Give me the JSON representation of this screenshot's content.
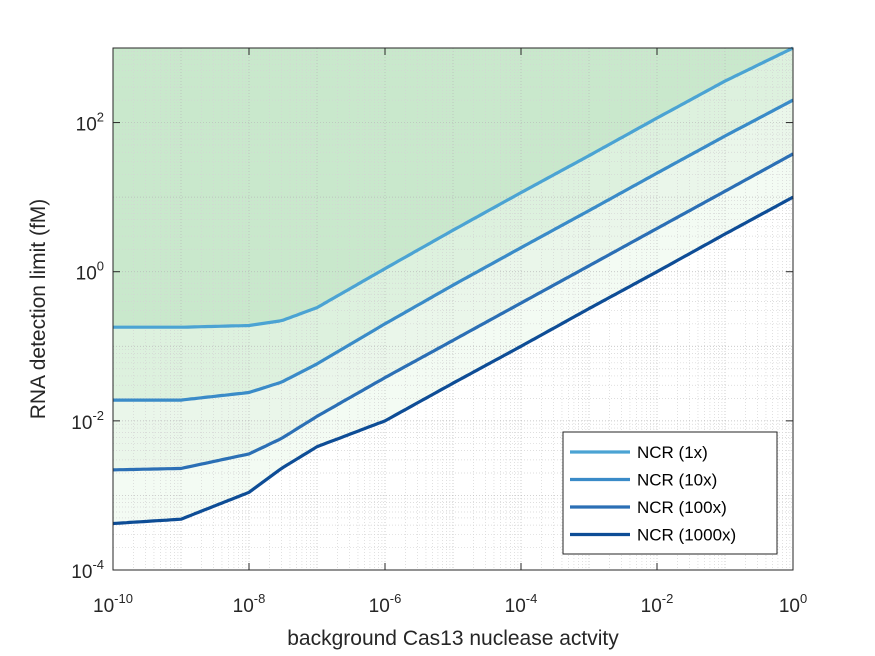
{
  "chart_data": {
    "type": "line",
    "title": "",
    "xlabel": "background Cas13  nuclease actvity",
    "ylabel": "RNA detection limit (fM)",
    "x_scale": "log",
    "y_scale": "log",
    "xlim": [
      1e-10,
      1
    ],
    "ylim": [
      0.0001,
      1000
    ],
    "x_ticks": [
      {
        "base": "10",
        "exp": "-10",
        "value": 1e-10
      },
      {
        "base": "10",
        "exp": "-8",
        "value": 1e-08
      },
      {
        "base": "10",
        "exp": "-6",
        "value": 1e-06
      },
      {
        "base": "10",
        "exp": "-4",
        "value": 0.0001
      },
      {
        "base": "10",
        "exp": "-2",
        "value": 0.01
      },
      {
        "base": "10",
        "exp": "0",
        "value": 1
      }
    ],
    "y_ticks": [
      {
        "base": "10",
        "exp": "-4",
        "value": 0.0001
      },
      {
        "base": "10",
        "exp": "-2",
        "value": 0.01
      },
      {
        "base": "10",
        "exp": "0",
        "value": 1
      },
      {
        "base": "10",
        "exp": "2",
        "value": 100
      }
    ],
    "grid": true,
    "legend_position": "bottom-right",
    "series": [
      {
        "name": "NCR (1x)",
        "color": "#4ba3d3",
        "x": [
          1e-10,
          1e-09,
          1e-08,
          3e-08,
          1e-07,
          1e-06,
          1e-05,
          0.0001,
          0.001,
          0.01,
          0.1,
          1
        ],
        "y": [
          0.18,
          0.18,
          0.19,
          0.22,
          0.33,
          1.1,
          3.6,
          11.5,
          36,
          115,
          360,
          1000
        ]
      },
      {
        "name": "NCR (10x)",
        "color": "#3a8bc8",
        "x": [
          1e-10,
          1e-09,
          1e-08,
          3e-08,
          1e-07,
          1e-06,
          1e-05,
          0.0001,
          0.001,
          0.01,
          0.1,
          1
        ],
        "y": [
          0.019,
          0.019,
          0.024,
          0.033,
          0.058,
          0.2,
          0.66,
          2.1,
          6.6,
          21,
          66,
          200
        ]
      },
      {
        "name": "NCR (100x)",
        "color": "#2b6fb5",
        "x": [
          1e-10,
          1e-09,
          1e-08,
          3e-08,
          1e-07,
          1e-06,
          1e-05,
          0.0001,
          0.001,
          0.01,
          0.1,
          1
        ],
        "y": [
          0.0022,
          0.0023,
          0.0036,
          0.0058,
          0.0115,
          0.038,
          0.12,
          0.38,
          1.2,
          3.8,
          12,
          38
        ]
      },
      {
        "name": "NCR (1000x)",
        "color": "#0e4d96",
        "x": [
          1e-10,
          1e-09,
          1e-08,
          3e-08,
          1e-07,
          1e-06,
          1e-05,
          0.0001,
          0.001,
          0.01,
          0.1,
          1
        ],
        "y": [
          0.00042,
          0.00048,
          0.0011,
          0.0023,
          0.0045,
          0.01,
          0.032,
          0.1,
          0.32,
          1,
          3.2,
          10
        ]
      }
    ],
    "shading": {
      "colors": [
        "#c9e8cc",
        "#ddf1de",
        "#eaf6ea",
        "#f3fbf3"
      ]
    }
  }
}
